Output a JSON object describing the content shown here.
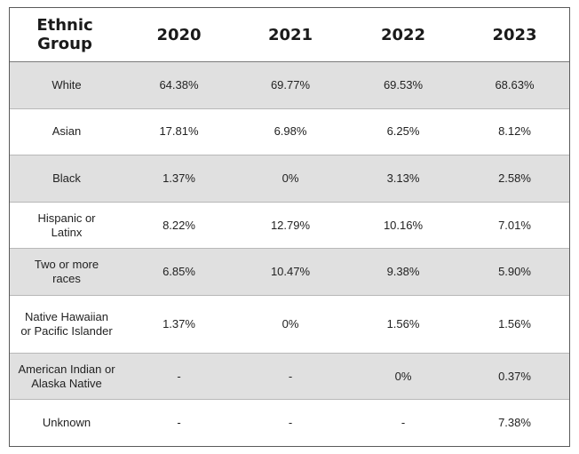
{
  "table": {
    "headers": [
      "Ethnic Group",
      "2020",
      "2021",
      "2022",
      "2023"
    ],
    "rows": [
      {
        "group": "White",
        "values": [
          "64.38%",
          "69.77%",
          "69.53%",
          "68.63%"
        ]
      },
      {
        "group": "Asian",
        "values": [
          "17.81%",
          "6.98%",
          "6.25%",
          "8.12%"
        ]
      },
      {
        "group": "Black",
        "values": [
          "1.37%",
          "0%",
          "3.13%",
          "2.58%"
        ]
      },
      {
        "group": "Hispanic or Latinx",
        "values": [
          "8.22%",
          "12.79%",
          "10.16%",
          "7.01%"
        ]
      },
      {
        "group": "Two or more races",
        "values": [
          "6.85%",
          "10.47%",
          "9.38%",
          "5.90%"
        ]
      },
      {
        "group": "Native Hawaiian or Pacific Islander",
        "values": [
          "1.37%",
          "0%",
          "1.56%",
          "1.56%"
        ]
      },
      {
        "group": "American Indian or Alaska Native",
        "values": [
          "-",
          "-",
          "0%",
          "0.37%"
        ]
      },
      {
        "group": "Unknown",
        "values": [
          "-",
          "-",
          "-",
          "7.38%"
        ]
      }
    ]
  }
}
